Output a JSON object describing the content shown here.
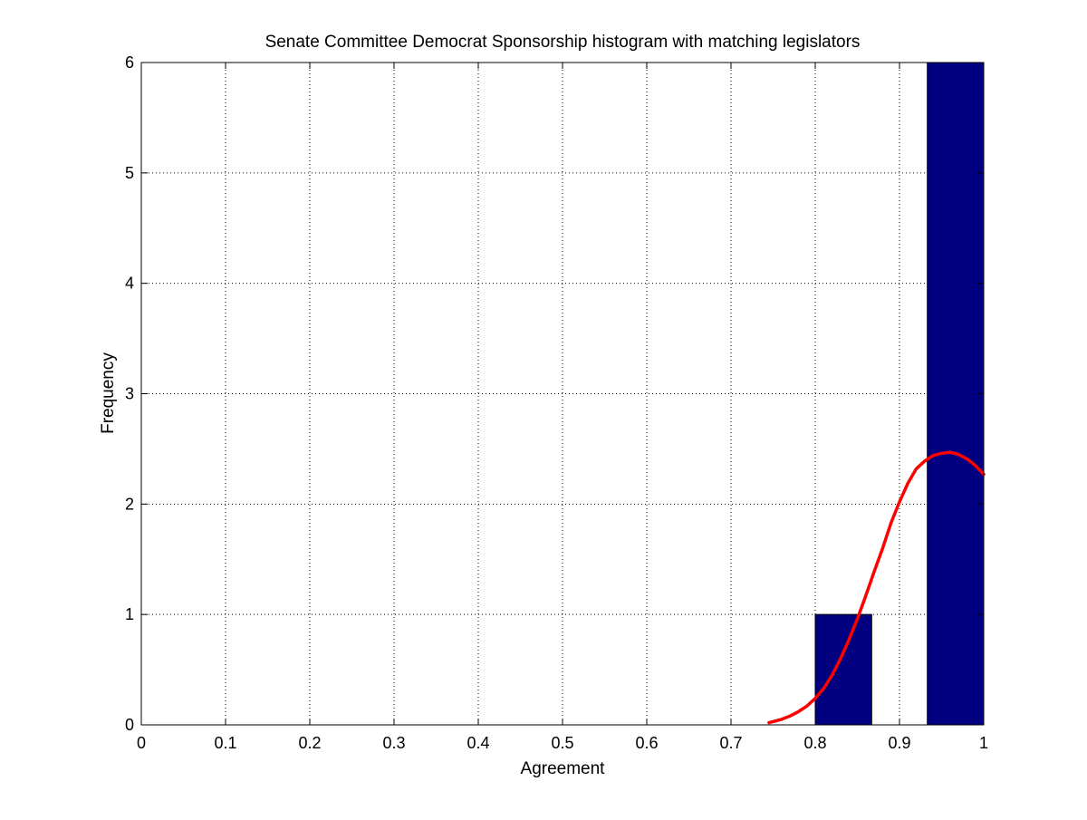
{
  "chart_data": {
    "type": "bar",
    "title": "Senate Committee Democrat Sponsorship histogram with matching legislators",
    "xlabel": "Agreement",
    "ylabel": "Frequency",
    "xlim": [
      0,
      1
    ],
    "ylim": [
      0,
      6
    ],
    "xticks": [
      0,
      0.1,
      0.2,
      0.3,
      0.4,
      0.5,
      0.6,
      0.7,
      0.8,
      0.9,
      1
    ],
    "xtick_labels": [
      "0",
      "0.1",
      "0.2",
      "0.3",
      "0.4",
      "0.5",
      "0.6",
      "0.7",
      "0.8",
      "0.9",
      "1"
    ],
    "yticks": [
      0,
      1,
      2,
      3,
      4,
      5,
      6
    ],
    "ytick_labels": [
      "0",
      "1",
      "2",
      "3",
      "4",
      "5",
      "6"
    ],
    "grid": true,
    "bars": [
      {
        "x0": 0.8,
        "x1": 0.867,
        "value": 1
      },
      {
        "x0": 0.933,
        "x1": 1.0,
        "value": 6
      }
    ],
    "bar_color": "#000080",
    "fit_curve": {
      "color": "#ff0000",
      "x": [
        0.745,
        0.76,
        0.77,
        0.78,
        0.79,
        0.8,
        0.81,
        0.82,
        0.83,
        0.84,
        0.85,
        0.86,
        0.87,
        0.88,
        0.89,
        0.9,
        0.91,
        0.92,
        0.93,
        0.94,
        0.95,
        0.96,
        0.97,
        0.98,
        0.99,
        1.0
      ],
      "y": [
        0.02,
        0.05,
        0.08,
        0.12,
        0.17,
        0.24,
        0.33,
        0.45,
        0.6,
        0.77,
        0.96,
        1.17,
        1.39,
        1.6,
        1.83,
        2.02,
        2.19,
        2.32,
        2.39,
        2.44,
        2.46,
        2.47,
        2.45,
        2.41,
        2.35,
        2.27
      ]
    }
  }
}
